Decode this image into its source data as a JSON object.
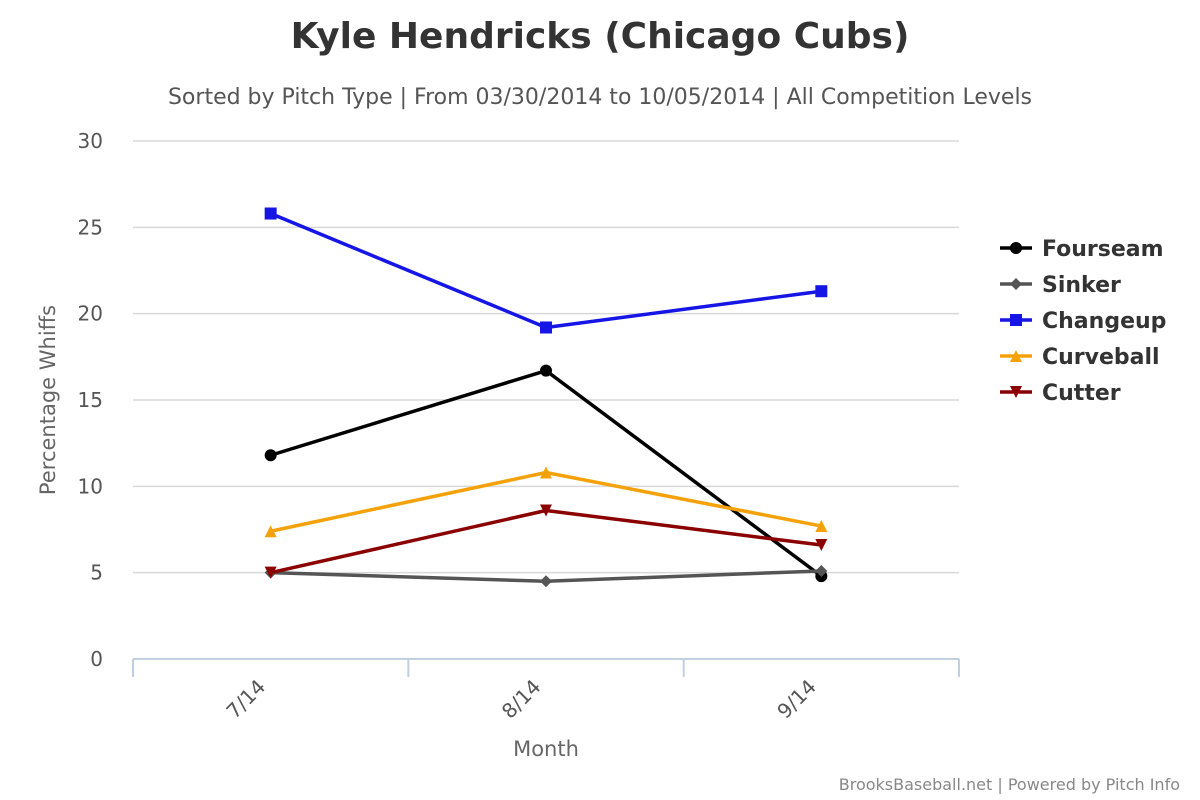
{
  "chart_data": {
    "type": "line",
    "title": "Kyle Hendricks (Chicago Cubs)",
    "subtitle": "Sorted by Pitch Type | From 03/30/2014 to 10/05/2014 | All Competition Levels",
    "xlabel": "Month",
    "ylabel": "Percentage Whiffs",
    "categories": [
      "7/14",
      "8/14",
      "9/14"
    ],
    "ylim": [
      0,
      30
    ],
    "yticks": [
      0,
      5,
      10,
      15,
      20,
      25,
      30
    ],
    "grid": true,
    "legend_position": "right",
    "series": [
      {
        "name": "Fourseam",
        "color": "#000000",
        "marker": "circle",
        "values": [
          11.8,
          16.7,
          4.8
        ]
      },
      {
        "name": "Sinker",
        "color": "#555555",
        "marker": "diamond",
        "values": [
          5.0,
          4.5,
          5.1
        ]
      },
      {
        "name": "Changeup",
        "color": "#1515e6",
        "marker": "square",
        "values": [
          25.8,
          19.2,
          21.3
        ]
      },
      {
        "name": "Curveball",
        "color": "#f5a20a",
        "marker": "triangle",
        "values": [
          7.4,
          10.8,
          7.7
        ]
      },
      {
        "name": "Cutter",
        "color": "#8b0000",
        "marker": "triangle-down",
        "values": [
          5.0,
          8.6,
          6.6
        ]
      }
    ]
  },
  "credit": "BrooksBaseball.net | Powered by Pitch Info"
}
